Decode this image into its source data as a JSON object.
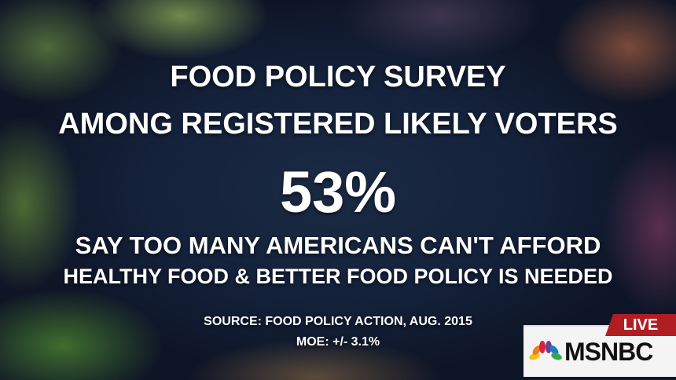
{
  "headline": {
    "line1": "FOOD POLICY SURVEY",
    "line2": "AMONG REGISTERED LIKELY VOTERS",
    "stat": "53%",
    "line3": "SAY TOO MANY AMERICANS CAN'T AFFORD",
    "line4": "HEALTHY FOOD & BETTER FOOD POLICY IS NEEDED",
    "source": "SOURCE: FOOD POLICY ACTION, AUG. 2015",
    "moe": "MOE: +/- 3.1%"
  },
  "bug": {
    "live_label": "LIVE",
    "network": "MSNBC",
    "icon": "nbc-peacock-icon",
    "live_color": "#b01e23"
  }
}
